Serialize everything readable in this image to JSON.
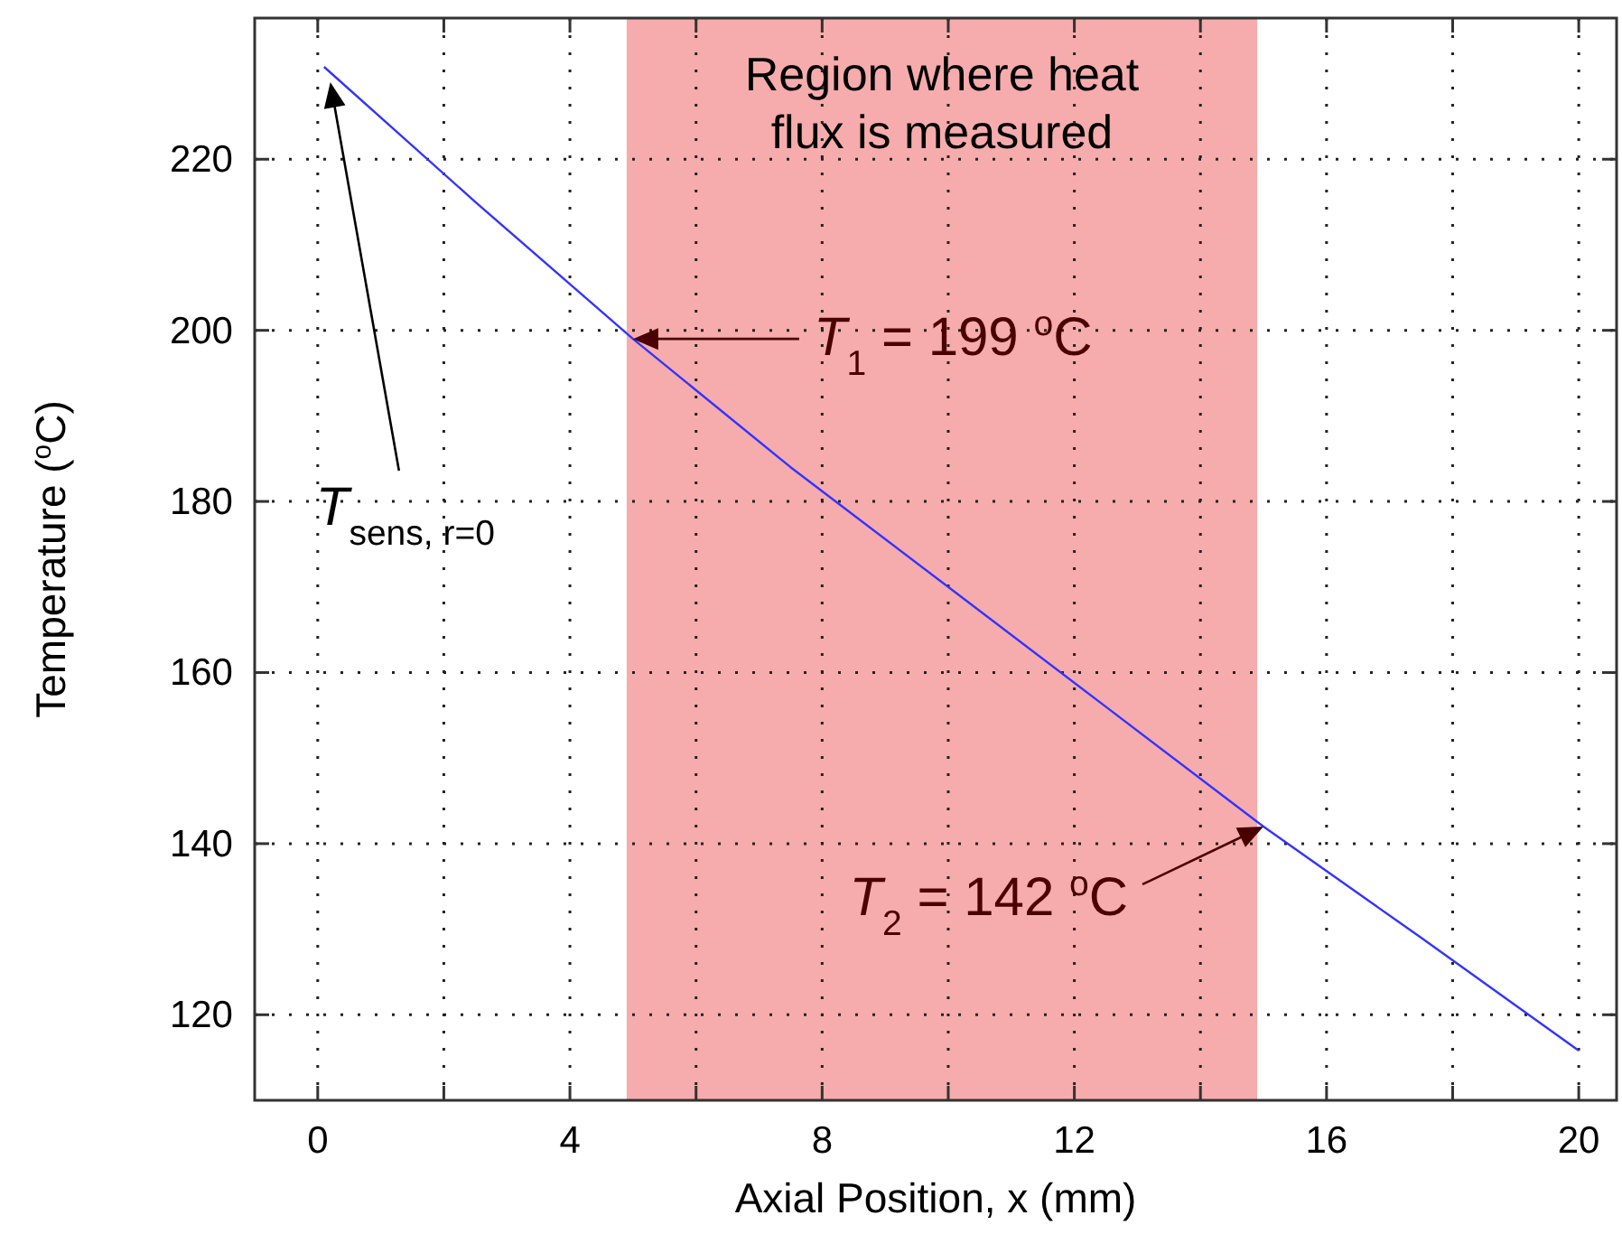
{
  "chart_data": {
    "type": "line",
    "xlabel": "Axial Position, x (mm)",
    "ylabel": "Temperature ($^{o}$C)",
    "xlim": [
      -1,
      20.6
    ],
    "ylim": [
      110,
      236.5
    ],
    "xticks": [
      0,
      {
        "value": 2,
        "label": null
      },
      4,
      {
        "value": 6,
        "label": null
      },
      8,
      {
        "value": 10,
        "label": null
      },
      12,
      {
        "value": 14,
        "label": null
      },
      16,
      {
        "value": 18,
        "label": null
      },
      20
    ],
    "yticks": [
      120,
      140,
      160,
      180,
      200,
      220
    ],
    "grid": true,
    "marker": "none",
    "line_style": "solid",
    "series": [
      {
        "color": "#3333ff",
        "x": [
          0.1,
          2.5,
          5,
          7.5,
          10,
          12.5,
          15,
          17.5,
          20
        ],
        "values": [
          230.8,
          215,
          199,
          184,
          170,
          156,
          142,
          129,
          115.8
        ]
      }
    ],
    "bands": [
      {
        "axis": "x",
        "from": 4.9,
        "to": 14.9,
        "label": "Region where heat flux is measured",
        "color": "#f5a3a3"
      }
    ],
    "annotations": [
      "T$_{sens, r=0}$",
      "T$_{1}$ = 199 $^{o}$C",
      {
        "text": "T$_{2}$ = 142 $^{o}$C",
        "x": 15,
        "y": 142
      }
    ]
  }
}
